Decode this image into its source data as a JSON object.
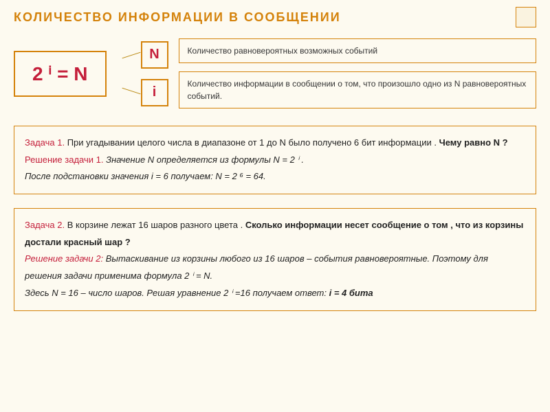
{
  "title": "КОЛИЧЕСТВО  ИНФОРМАЦИИ  В  СООБЩЕНИИ",
  "formula": "2 ⁱ = N",
  "var_N": "N",
  "var_i": "i",
  "def_N": "Количество равновероятных возможных событий",
  "def_i": "Количество информации в сообщении о том, что произошло одно из N равновероятных событий.",
  "task1": {
    "label": "Задача 1.",
    "text": "При угадывании целого числа в диапазоне от 1 до N было получено 6 бит информации . ",
    "question": "Чему равно N ?",
    "solution_label": "Решение задачи 1.",
    "solution_p1": "Значение N определяется из формулы N = 2 ⁱ .",
    "solution_p2": "После подстановки значения i = 6 получаем: N = 2 ⁶ = 64."
  },
  "task2": {
    "label": "Задача 2.",
    "text": "В корзине лежат 16 шаров разного цвета . ",
    "question": "Сколько информации несет сообщение о том , что из корзины достали красный шар ?",
    "solution_label": "Решение задачи 2:",
    "solution_p1": "Вытаскивание из корзины любого из 16 шаров – события равновероятные. Поэтому для решения задачи применима формула 2 ⁱ = N.",
    "solution_p2": "Здесь N = 16 – число шаров. Решая уравнение 2 ⁱ =16 получаем ответ: ",
    "answer": "i = 4 бита"
  },
  "colors": {
    "accent": "#d4820a",
    "red": "#c41e3a",
    "bg": "#fdfaf0"
  }
}
